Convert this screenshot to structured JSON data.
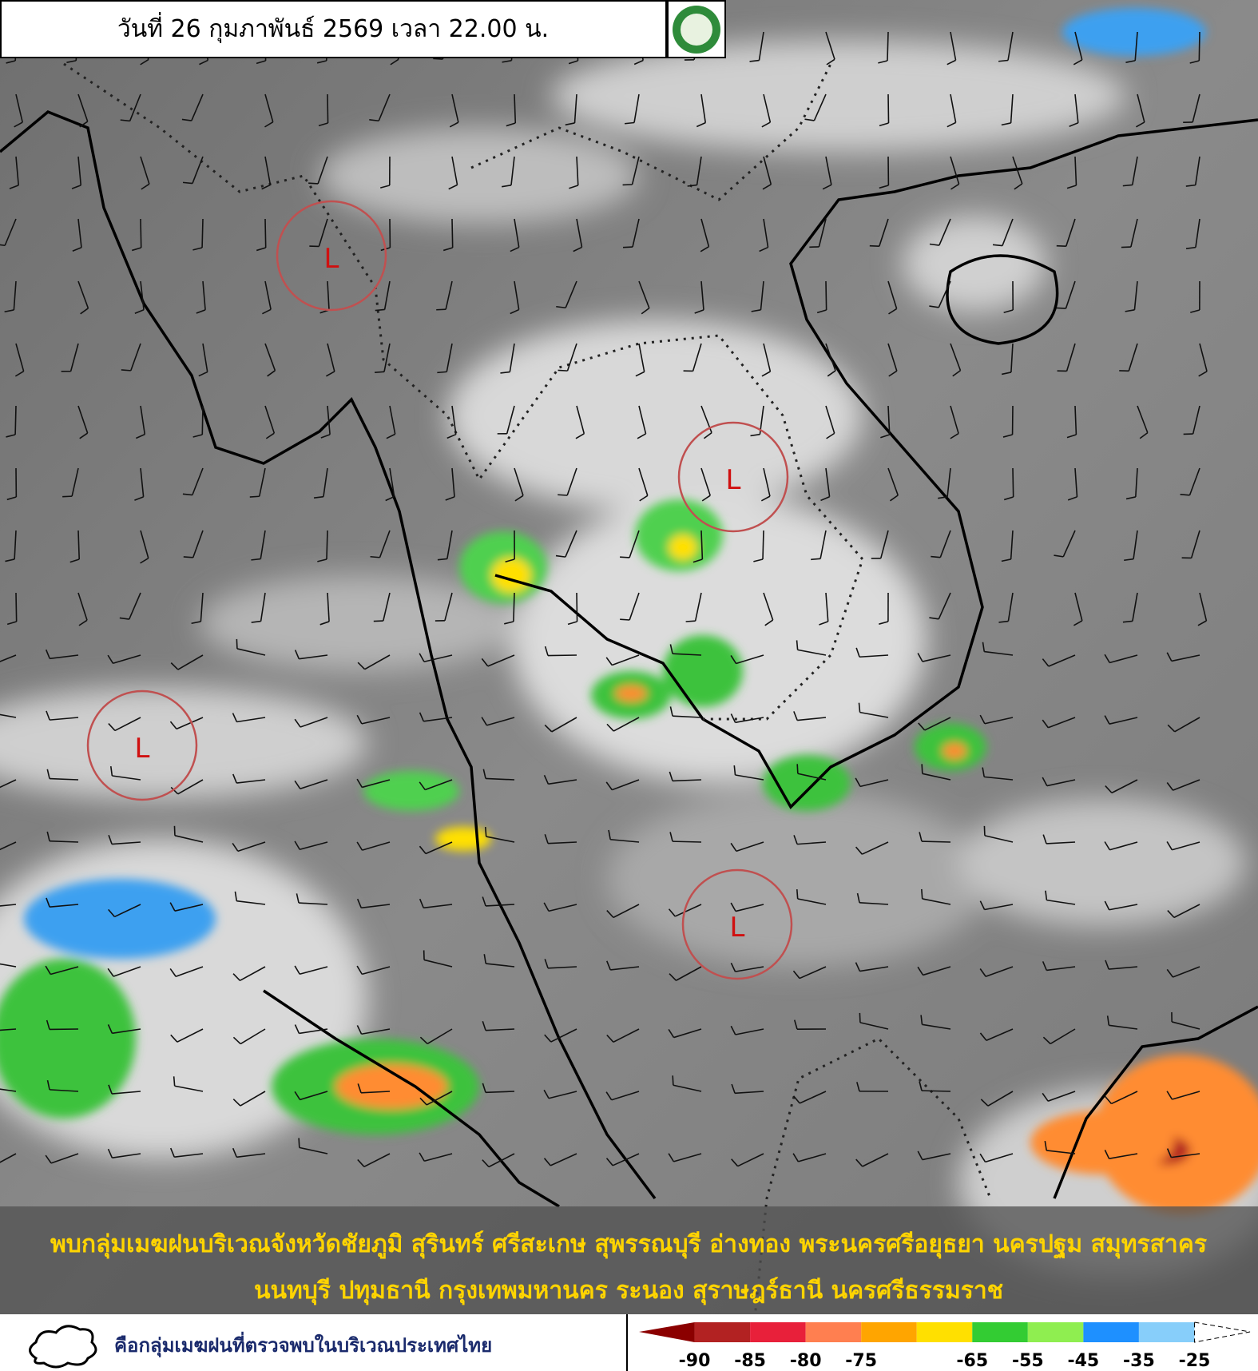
{
  "header": {
    "title": "วันที่ 26 กุมภาพันธ์ 2569 เวลา 22.00 น."
  },
  "lows": [
    {
      "label": "L"
    },
    {
      "label": "L"
    },
    {
      "label": "L"
    },
    {
      "label": "L"
    }
  ],
  "summary": {
    "lines": [
      "พบกลุ่มเมฆฝนบริเวณจังหวัดชัยภูมิ สุรินทร์ ศรีสะเกษ สุพรรณบุรี อ่างทอง พระนครศรีอยุธยา นครปฐม สมุทรสาคร",
      "นนทบุรี ปทุมธานี กรุงเทพมหานคร ระนอง สุราษฎร์ธานี นครศรีธรรมราช"
    ]
  },
  "legend": {
    "text": "คือกลุ่มเมฆฝนที่ตรวจพบในบริเวณประเทศไทย",
    "scale_colors": [
      "#8b0000",
      "#b22222",
      "#e8203a",
      "#ff7f50",
      "#ffa500",
      "#ffe000",
      "#33cc33",
      "#8fee50",
      "#1e90ff",
      "#87cefa",
      "#ffffff"
    ],
    "scale_labels": [
      "-90",
      "-85",
      "-80",
      "-75",
      "-65",
      "-55",
      "-45",
      "-35",
      "-25"
    ]
  }
}
